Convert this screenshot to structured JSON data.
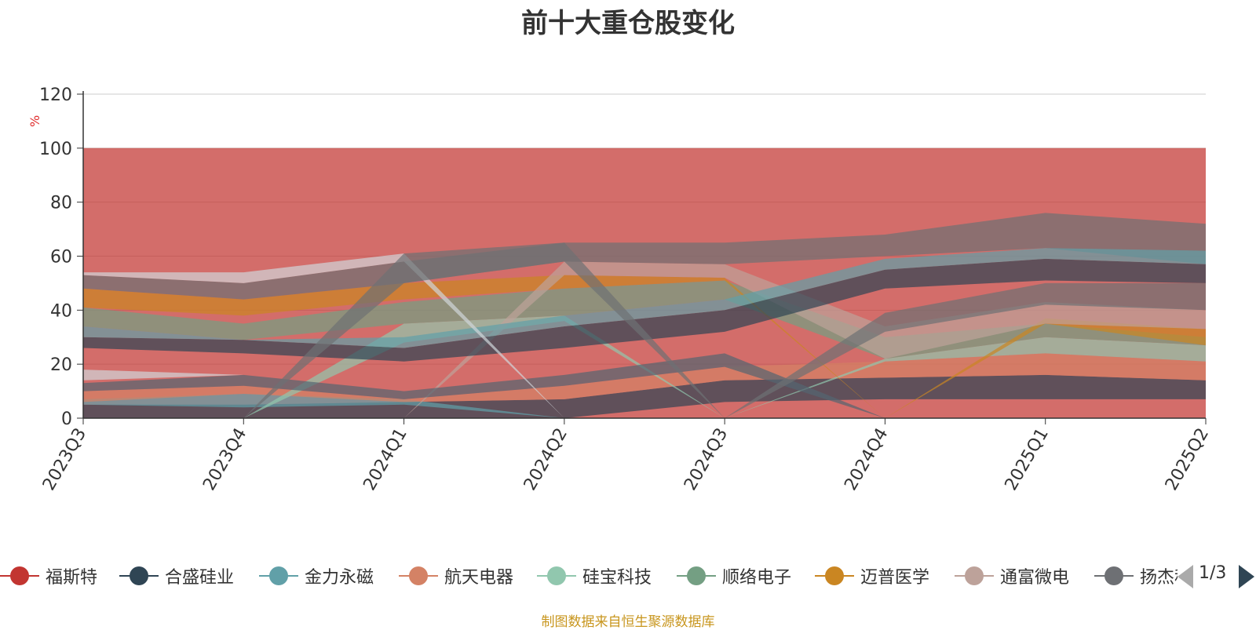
{
  "chart_data": {
    "type": "area",
    "stacked": false,
    "title": "前十大重仓股变化",
    "ylabel": "%",
    "ylim": [
      0,
      120
    ],
    "yticks": [
      0,
      20,
      40,
      60,
      80,
      100,
      120
    ],
    "categories": [
      "2023Q3",
      "2023Q4",
      "2024Q1",
      "2024Q2",
      "2024Q3",
      "2024Q4",
      "2025Q1",
      "2025Q2"
    ],
    "grid": true,
    "legend_position": "bottom",
    "series": [
      {
        "name": "福斯特",
        "color": "#c23531",
        "lower": [
          0,
          0,
          0,
          0,
          0,
          0,
          0,
          0
        ],
        "upper": [
          100,
          100,
          100,
          100,
          100,
          100,
          100,
          100
        ]
      },
      {
        "name": "合盛硅业",
        "color": "#2f4554",
        "lower": [
          0,
          0,
          0,
          0,
          6,
          7,
          7,
          7
        ],
        "upper": [
          5,
          5,
          6,
          7,
          14,
          15,
          16,
          14
        ]
      },
      {
        "name": "金力永磁",
        "color": "#61a0a8",
        "lower": [
          5,
          4,
          5,
          0,
          0,
          0,
          0,
          0
        ],
        "upper": [
          7,
          9,
          7,
          0,
          0,
          0,
          0,
          0
        ]
      },
      {
        "name": "航天电器",
        "color": "#d48265",
        "lower": [
          6,
          9,
          6,
          7,
          14,
          15,
          16,
          14
        ],
        "upper": [
          10,
          12,
          7,
          12,
          19,
          21,
          24,
          21
        ]
      },
      {
        "name": "硅宝科技",
        "color": "#91c7ae",
        "lower": [
          0,
          0,
          28,
          36,
          0,
          21,
          24,
          21
        ],
        "upper": [
          0,
          0,
          35,
          38,
          0,
          22,
          30,
          27
        ]
      },
      {
        "name": "顺络电子",
        "color": "#749f83",
        "lower": [
          34,
          29,
          35,
          38,
          44,
          22,
          30,
          27
        ],
        "upper": [
          41,
          35,
          43,
          48,
          51,
          30,
          35,
          30
        ]
      },
      {
        "name": "迈普医学",
        "color": "#ca8622",
        "lower": [
          41,
          38,
          44,
          48,
          51,
          0,
          35,
          27
        ],
        "upper": [
          48,
          44,
          50,
          53,
          52,
          0,
          37,
          33
        ]
      },
      {
        "name": "通富微电",
        "color": "#bda29a",
        "lower": [
          0,
          0,
          0,
          53,
          52,
          22,
          35,
          33
        ],
        "upper": [
          0,
          0,
          0,
          58,
          57,
          34,
          43,
          40
        ]
      },
      {
        "name": "扬杰科技",
        "color": "#6e7074",
        "lower": [
          48,
          44,
          50,
          58,
          57,
          60,
          63,
          57
        ],
        "upper": [
          53,
          50,
          58,
          65,
          65,
          68,
          76,
          72
        ]
      }
    ],
    "extra_bands": [
      {
        "color": "#2f4554",
        "lower": [
          26,
          24,
          21,
          26,
          32,
          48,
          51,
          50
        ],
        "upper": [
          30,
          29,
          26,
          34,
          40,
          55,
          59,
          57
        ]
      },
      {
        "color": "#61a0a8",
        "lower": [
          30,
          29,
          26,
          34,
          40,
          55,
          59,
          57
        ],
        "upper": [
          34,
          29,
          30,
          38,
          44,
          59,
          63,
          62
        ]
      },
      {
        "color": "#546570",
        "lower": [
          10,
          12,
          7,
          12,
          19,
          0,
          0,
          0
        ],
        "upper": [
          13,
          16,
          10,
          16,
          24,
          0,
          0,
          0
        ]
      },
      {
        "color": "#6e7074",
        "lower": [
          0,
          0,
          0,
          0,
          0,
          32,
          42,
          40
        ],
        "upper": [
          0,
          0,
          0,
          0,
          0,
          39,
          50,
          50
        ]
      },
      {
        "color": "#d0d6da",
        "lower": [
          14,
          16,
          0,
          0,
          0,
          0,
          0,
          0
        ],
        "upper": [
          18,
          16,
          0,
          0,
          0,
          0,
          0,
          0
        ]
      },
      {
        "color": "#d0d6da",
        "lower": [
          53,
          50,
          58,
          0,
          0,
          0,
          0,
          0
        ],
        "upper": [
          54,
          54,
          61,
          0,
          0,
          0,
          0,
          0
        ]
      },
      {
        "color": "#6e7074",
        "lower": [
          0,
          0,
          50,
          58,
          0,
          0,
          0,
          0
        ],
        "upper": [
          0,
          0,
          61,
          65,
          0,
          0,
          0,
          0
        ]
      }
    ]
  },
  "legend": {
    "items": [
      {
        "label": "福斯特",
        "color": "#c23531"
      },
      {
        "label": "合盛硅业",
        "color": "#2f4554"
      },
      {
        "label": "金力永磁",
        "color": "#61a0a8"
      },
      {
        "label": "航天电器",
        "color": "#d48265"
      },
      {
        "label": "硅宝科技",
        "color": "#91c7ae"
      },
      {
        "label": "顺络电子",
        "color": "#749f83"
      },
      {
        "label": "迈普医学",
        "color": "#ca8622"
      },
      {
        "label": "通富微电",
        "color": "#bda29a"
      },
      {
        "label": "扬杰科技",
        "color": "#6e7074"
      }
    ],
    "page_text": "1/3"
  },
  "footer": {
    "source_text": "制图数据来自恒生聚源数据库"
  }
}
